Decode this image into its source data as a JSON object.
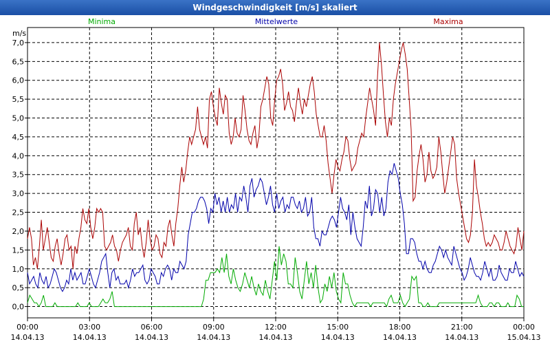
{
  "window": {
    "title": "Windgeschwindigkeit [m/s] skaliert"
  },
  "chart_data": {
    "type": "line",
    "title": "Windgeschwindigkeit [m/s] skaliert",
    "ylabel": "m/s",
    "ylim": [
      -0.3,
      7.4
    ],
    "xlim": [
      0,
      24
    ],
    "grid": true,
    "legend_placement": "top",
    "y_ticks": [
      "0,0",
      "0,5",
      "1,0",
      "1,5",
      "2,0",
      "2,5",
      "3,0",
      "3,5",
      "4,0",
      "4,5",
      "5,0",
      "5,5",
      "6,0",
      "6,5",
      "7,0"
    ],
    "x_ticks": [
      {
        "time": "00:00",
        "date": "14.04.13"
      },
      {
        "time": "03:00",
        "date": "14.04.13"
      },
      {
        "time": "06:00",
        "date": "14.04.13"
      },
      {
        "time": "09:00",
        "date": "14.04.13"
      },
      {
        "time": "12:00",
        "date": "14.04.13"
      },
      {
        "time": "15:00",
        "date": "14.04.13"
      },
      {
        "time": "18:00",
        "date": "14.04.13"
      },
      {
        "time": "21:00",
        "date": "14.04.13"
      },
      {
        "time": "00:00",
        "date": "15.04.13"
      }
    ],
    "series": [
      {
        "name": "Minima",
        "color": "#00aa00",
        "values": [
          0.1,
          0.3,
          0.2,
          0.1,
          0.1,
          0.0,
          0.1,
          0.3,
          0.0,
          0.0,
          0.0,
          0.0,
          0.1,
          0.0,
          0.0,
          0.0,
          0.0,
          0.0,
          0.0,
          0.0,
          0.0,
          0.0,
          0.1,
          0.0,
          0.0,
          0.0,
          0.0,
          0.1,
          0.0,
          0.0,
          0.0,
          0.0,
          0.1,
          0.2,
          0.1,
          0.1,
          0.2,
          0.4,
          0.0,
          0.0,
          0.0,
          0.0,
          0.0,
          0.0,
          0.0,
          0.0,
          0.0,
          0.0,
          0.0,
          0.0,
          0.0,
          0.0,
          0.0,
          0.0,
          0.0,
          0.0,
          0.0,
          0.0,
          0.0,
          0.0,
          0.0,
          0.0,
          0.0,
          0.0,
          0.0,
          0.0,
          0.0,
          0.0,
          0.0,
          0.0,
          0.0,
          0.0,
          0.0,
          0.0,
          0.0,
          0.0,
          0.0,
          0.2,
          0.7,
          0.7,
          0.9,
          0.9,
          0.9,
          1.0,
          0.9,
          1.3,
          0.9,
          1.4,
          0.8,
          0.6,
          1.0,
          0.7,
          0.5,
          0.4,
          0.6,
          0.9,
          0.7,
          0.5,
          0.8,
          0.5,
          0.3,
          0.6,
          0.4,
          0.3,
          0.7,
          0.4,
          0.2,
          0.7,
          1.2,
          0.7,
          1.6,
          1.1,
          1.4,
          1.2,
          0.6,
          0.6,
          0.5,
          1.3,
          0.9,
          0.4,
          0.2,
          0.7,
          1.2,
          0.6,
          0.9,
          0.5,
          1.1,
          0.5,
          0.1,
          0.2,
          0.6,
          0.4,
          0.8,
          0.5,
          0.9,
          0.4,
          0.2,
          0.1,
          0.9,
          0.6,
          0.6,
          0.3,
          0.1,
          0.0,
          0.1,
          0.1,
          0.1,
          0.1,
          0.1,
          0.1,
          0.0,
          0.1,
          0.1,
          0.1,
          0.1,
          0.1,
          0.1,
          0.0,
          0.2,
          0.3,
          0.1,
          0.1,
          0.1,
          0.3,
          0.1,
          0.0,
          0.1,
          0.2,
          0.8,
          0.7,
          0.8,
          0.1,
          0.1,
          0.0,
          0.0,
          0.1,
          0.0,
          0.0,
          0.0,
          0.0,
          0.1,
          0.1,
          0.1,
          0.1,
          0.1,
          0.1,
          0.1,
          0.1,
          0.1,
          0.1,
          0.1,
          0.1,
          0.1,
          0.1,
          0.1,
          0.1,
          0.1,
          0.3,
          0.1,
          0.0,
          0.0,
          0.0,
          0.1,
          0.1,
          0.0,
          0.1,
          0.1,
          0.0,
          0.0,
          0.0,
          0.1,
          0.0,
          0.0,
          0.0,
          0.3,
          0.2,
          0.0,
          0.0
        ]
      },
      {
        "name": "Mittelwerte",
        "color": "#0000aa",
        "values": [
          0.9,
          0.6,
          0.7,
          0.8,
          0.6,
          0.5,
          0.9,
          0.7,
          0.6,
          0.8,
          0.5,
          0.6,
          0.8,
          1.0,
          0.9,
          0.7,
          0.5,
          0.4,
          0.5,
          0.7,
          0.6,
          1.0,
          0.7,
          0.9,
          0.7,
          0.8,
          0.9,
          0.6,
          0.6,
          0.8,
          1.0,
          0.8,
          0.6,
          0.5,
          0.7,
          0.9,
          1.2,
          1.3,
          1.4,
          0.9,
          0.5,
          0.9,
          1.0,
          0.7,
          0.8,
          0.6,
          0.6,
          0.6,
          0.7,
          0.5,
          0.7,
          1.0,
          0.8,
          0.9,
          0.9,
          1.0,
          1.1,
          0.7,
          0.6,
          0.7,
          1.0,
          0.9,
          0.8,
          0.6,
          0.6,
          0.9,
          0.8,
          1.0,
          1.1,
          1.0,
          0.7,
          1.0,
          0.9,
          0.9,
          1.2,
          1.1,
          1.0,
          1.2,
          1.9,
          2.2,
          2.5,
          2.5,
          2.6,
          2.8,
          2.9,
          2.9,
          2.8,
          2.6,
          2.2,
          2.6,
          2.5,
          3.0,
          2.7,
          2.9,
          2.5,
          2.8,
          2.5,
          2.9,
          2.5,
          2.7,
          2.6,
          3.0,
          2.5,
          2.9,
          2.8,
          3.2,
          2.9,
          2.5,
          3.2,
          3.4,
          2.9,
          3.1,
          3.2,
          3.4,
          3.3,
          3.0,
          2.7,
          2.9,
          3.2,
          2.7,
          2.5,
          3.0,
          2.6,
          2.8,
          2.9,
          2.5,
          2.7,
          2.6,
          2.9,
          2.9,
          2.7,
          2.6,
          2.8,
          2.5,
          2.6,
          2.9,
          2.4,
          2.5,
          2.9,
          2.1,
          1.8,
          1.8,
          1.6,
          2.0,
          1.9,
          1.9,
          2.1,
          2.3,
          2.4,
          2.3,
          2.1,
          2.5,
          2.9,
          2.6,
          2.5,
          2.3,
          2.7,
          1.9,
          2.5,
          2.1,
          1.8,
          1.7,
          1.6,
          2.1,
          2.8,
          2.6,
          3.2,
          2.4,
          2.6,
          3.1,
          3.0,
          2.5,
          2.9,
          2.4,
          2.6,
          3.3,
          3.6,
          3.5,
          3.8,
          3.6,
          3.4,
          3.0,
          2.7,
          2.2,
          1.4,
          1.4,
          1.8,
          1.8,
          1.7,
          1.4,
          1.2,
          1.2,
          1.0,
          1.2,
          1.0,
          0.9,
          0.9,
          1.1,
          1.2,
          1.4,
          1.6,
          1.5,
          1.3,
          1.5,
          1.3,
          1.2,
          1.1,
          1.6,
          1.4,
          1.2,
          1.0,
          0.9,
          0.7,
          0.8,
          1.0,
          1.3,
          1.1,
          0.9,
          0.8,
          0.8,
          0.7,
          0.9,
          1.2,
          1.0,
          0.8,
          1.0,
          0.7,
          0.7,
          0.8,
          1.1,
          0.9,
          0.8,
          0.7,
          0.7,
          1.0,
          0.9,
          0.9,
          1.2,
          1.0,
          0.8,
          0.9,
          0.8
        ]
      },
      {
        "name": "Maxima",
        "color": "#aa0000",
        "values": [
          1.8,
          2.1,
          1.8,
          1.1,
          1.3,
          1.0,
          1.6,
          2.3,
          1.5,
          1.8,
          2.1,
          1.7,
          1.3,
          1.2,
          1.6,
          1.8,
          1.4,
          1.1,
          1.4,
          1.8,
          1.9,
          1.5,
          1.6,
          1.0,
          1.6,
          1.4,
          1.8,
          2.1,
          2.6,
          2.3,
          2.2,
          2.6,
          2.1,
          1.8,
          2.1,
          2.6,
          2.5,
          2.6,
          2.5,
          1.6,
          1.5,
          1.6,
          1.7,
          1.9,
          1.6,
          1.5,
          1.2,
          1.5,
          1.7,
          1.8,
          1.9,
          2.1,
          1.6,
          1.5,
          2.2,
          2.5,
          1.9,
          2.1,
          1.6,
          1.3,
          1.7,
          2.3,
          1.8,
          1.5,
          1.6,
          1.9,
          1.8,
          1.4,
          1.3,
          1.7,
          1.6,
          2.1,
          2.3,
          1.9,
          1.6,
          2.2,
          2.6,
          3.2,
          3.7,
          3.3,
          3.6,
          4.1,
          4.5,
          4.3,
          4.5,
          4.7,
          5.3,
          4.7,
          4.5,
          4.3,
          4.5,
          4.2,
          5.5,
          5.7,
          5.3,
          5.0,
          4.8,
          5.8,
          5.4,
          5.1,
          5.6,
          5.5,
          4.6,
          4.3,
          4.5,
          5.0,
          4.6,
          4.5,
          4.7,
          5.6,
          5.2,
          4.7,
          4.4,
          4.3,
          4.6,
          4.8,
          4.2,
          4.5,
          5.3,
          5.5,
          5.8,
          6.1,
          5.9,
          5.0,
          4.8,
          5.5,
          6.0,
          6.1,
          6.3,
          5.9,
          5.2,
          5.4,
          5.7,
          5.3,
          5.2,
          4.9,
          5.4,
          5.8,
          5.4,
          5.1,
          5.5,
          5.3,
          5.6,
          5.9,
          6.1,
          5.7,
          5.1,
          4.8,
          4.5,
          4.5,
          4.8,
          4.4,
          3.8,
          3.4,
          3.0,
          3.5,
          3.9,
          3.7,
          3.6,
          3.9,
          4.1,
          4.5,
          4.4,
          3.9,
          3.6,
          3.7,
          3.8,
          4.2,
          4.4,
          4.6,
          4.5,
          5.0,
          5.4,
          5.8,
          5.5,
          5.2,
          4.8,
          6.1,
          7.0,
          6.4,
          5.6,
          4.9,
          4.5,
          5.0,
          4.8,
          5.5,
          5.9,
          6.2,
          6.5,
          6.8,
          7.0,
          6.7,
          6.3,
          5.5,
          4.7,
          2.8,
          2.9,
          3.6,
          4.0,
          4.3,
          3.9,
          3.3,
          3.5,
          4.1,
          3.6,
          3.4,
          3.5,
          3.7,
          4.5,
          4.1,
          3.5,
          3.0,
          3.3,
          3.7,
          4.1,
          4.5,
          4.3,
          3.4,
          3.0,
          2.7,
          2.4,
          2.1,
          1.8,
          1.7,
          1.9,
          2.5,
          3.9,
          3.2,
          2.9,
          2.5,
          2.2,
          1.8,
          1.6,
          1.7,
          1.6,
          1.7,
          1.9,
          1.8,
          1.7,
          1.5,
          1.5,
          1.7,
          2.0,
          1.8,
          1.6,
          1.5,
          1.4,
          1.6,
          2.1,
          1.8,
          1.5,
          2.0
        ]
      }
    ]
  }
}
